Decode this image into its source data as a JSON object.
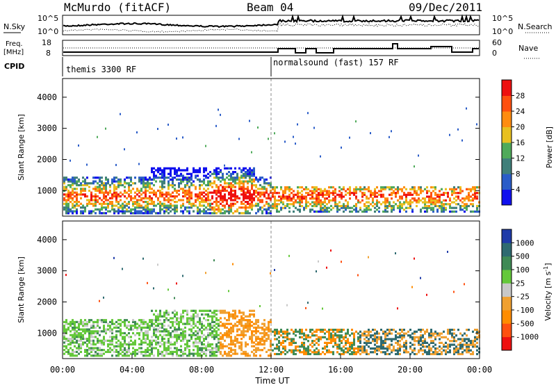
{
  "header": {
    "title": "McMurdo (fitACF)",
    "beam": "Beam 04",
    "date": "09/Dec/2011"
  },
  "noise_panel": {
    "left_label": "N.Sky",
    "left_ticks": [
      "10^5",
      "10^0"
    ],
    "right_label": "N.Search",
    "right_ticks": [
      "10^5",
      "10^0"
    ]
  },
  "freq_panel": {
    "left_label_top": "Freq.",
    "left_label_bottom": "[MHz]",
    "left_ticks": [
      "18",
      "8"
    ],
    "right_label": "Nave",
    "right_ticks": [
      "60",
      "0"
    ]
  },
  "cpid_panel": {
    "label": "CPID",
    "segments": [
      {
        "text": "themis 3300 RF",
        "start_hour": 0
      },
      {
        "text": "normalsound (fast) 157 RF",
        "start_hour": 12
      }
    ]
  },
  "chart_data": [
    {
      "type": "heatmap",
      "name": "Power",
      "ylabel": "Slant Range [km]",
      "ylim": [
        180,
        4600
      ],
      "yticks": [
        "1000",
        "2000",
        "3000",
        "4000"
      ],
      "xlim": [
        0,
        24
      ],
      "colorbar": {
        "label": "Power [dB]",
        "ticks": [
          "4",
          "8",
          "12",
          "16",
          "20",
          "24",
          "28"
        ],
        "colors": [
          "#1010ee",
          "#2a5cc8",
          "#3f7f7a",
          "#4faa5a",
          "#e8c020",
          "#ff8c10",
          "#ff5010",
          "#ee1010"
        ]
      }
    },
    {
      "type": "heatmap",
      "name": "Velocity",
      "ylabel": "Slant Range [km]",
      "ylim": [
        180,
        4600
      ],
      "yticks": [
        "1000",
        "2000",
        "3000",
        "4000"
      ],
      "xlim": [
        0,
        24
      ],
      "xlabel": "Time UT",
      "xticks": [
        "00:00",
        "04:00",
        "08:00",
        "12:00",
        "16:00",
        "20:00",
        "00:00"
      ],
      "colorbar": {
        "label_main": "Velocity",
        "label_unit": "[m s",
        "label_exp": "-1",
        "label_close": "]",
        "ticks": [
          "1000",
          "500",
          "100",
          "25",
          "-25",
          "-100",
          "-500",
          "-1000"
        ],
        "colors": [
          "#1e3aa8",
          "#2e6a70",
          "#3f8a55",
          "#64c83a",
          "#c8c8c8",
          "#f0a030",
          "#ff8c00",
          "#ff5010",
          "#ee1010"
        ]
      }
    }
  ]
}
